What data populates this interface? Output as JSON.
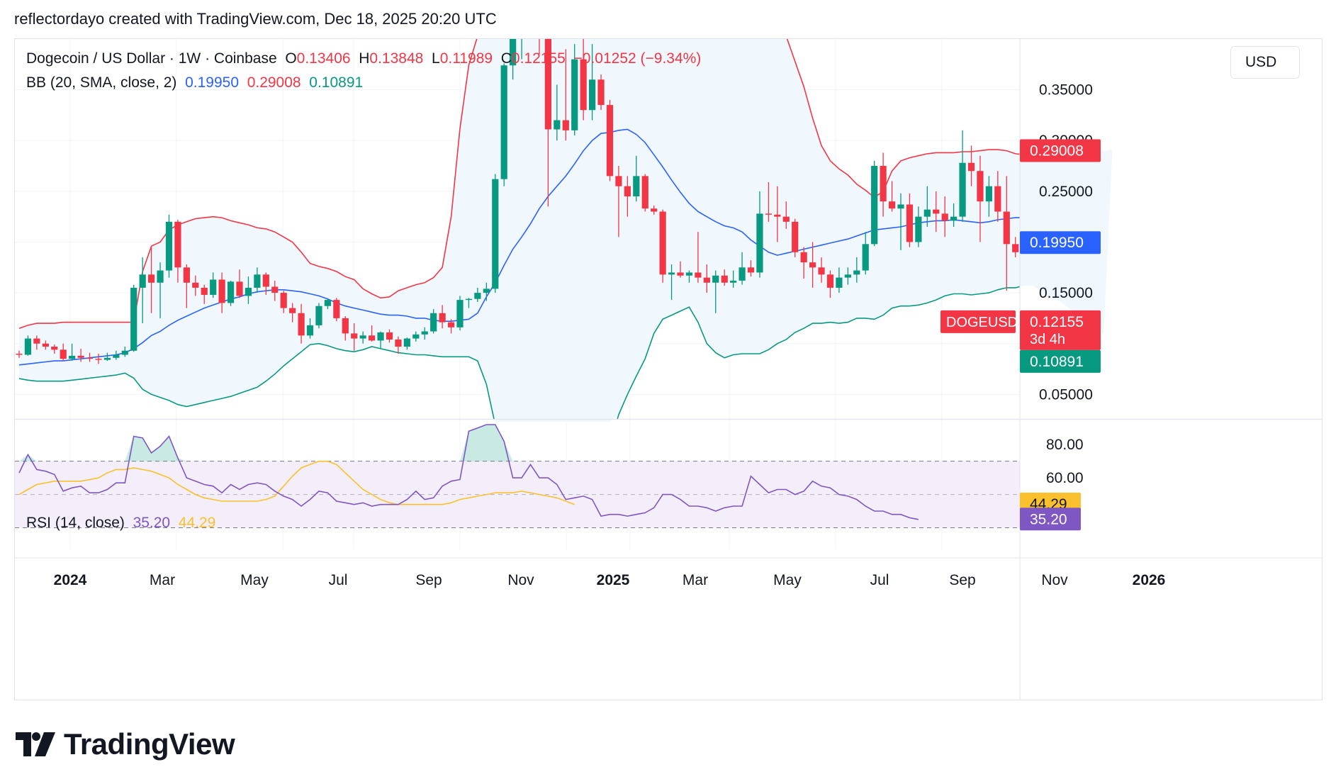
{
  "header": {
    "text": "reflectordayo created with TradingView.com, Dec 18, 2025 20:20 UTC"
  },
  "legend": {
    "symbol": "Dogecoin / US Dollar · 1W · Coinbase",
    "o_label": "O",
    "o_value": "0.13406",
    "h_label": "H",
    "h_value": "0.13848",
    "l_label": "L",
    "l_value": "0.11989",
    "c_label": "C",
    "c_value": "0.12155",
    "change": "−0.01252 (−9.34%)",
    "bb_label": "BB (20, SMA, close, 2)",
    "bb_basis": "0.19950",
    "bb_upper": "0.29008",
    "bb_lower": "0.10891",
    "rsi_label": "RSI (14, close)",
    "rsi_value": "35.20",
    "rsi_ma": "44.29"
  },
  "currency": "USD",
  "price_axis": {
    "ticks": [
      "0.35000",
      "0.30000",
      "0.25000",
      "0.15000",
      "0.05000"
    ],
    "badges": {
      "upper": "0.29008",
      "basis": "0.19950",
      "last_symbol": "DOGEUSD",
      "last_price": "0.12155",
      "countdown": "3d 4h",
      "lower": "0.10891"
    }
  },
  "rsi_axis": {
    "ticks": [
      "80.00",
      "60.00"
    ],
    "badges": {
      "ma": "44.29",
      "rsi": "35.20"
    }
  },
  "time_axis": [
    "2024",
    "Mar",
    "May",
    "Jul",
    "Sep",
    "Nov",
    "2025",
    "Mar",
    "May",
    "Jul",
    "Sep",
    "Nov",
    "2026"
  ],
  "brand": "TradingView",
  "colors": {
    "up": "#089981",
    "down": "#f23645",
    "bb_basis": "#2962ff",
    "bb_upper": "#f23645",
    "bb_lower": "#089981",
    "bb_fill": "#f0f7fd",
    "rsi": "#7e57c2",
    "rsi_ma": "#fbc02d",
    "rsi_band": "#f3eefa"
  },
  "chart_data": {
    "type": "candlestick",
    "symbol": "DOGEUSD",
    "interval": "1W",
    "y_range": [
      0.0258,
      0.4
    ],
    "rsi_range": [
      17,
      95
    ],
    "rsi_levels": [
      70,
      50,
      30
    ],
    "candles": [
      [
        0.09,
        0.093,
        0.086,
        0.089
      ],
      [
        0.089,
        0.108,
        0.088,
        0.105
      ],
      [
        0.105,
        0.108,
        0.094,
        0.1
      ],
      [
        0.1,
        0.103,
        0.094,
        0.097
      ],
      [
        0.097,
        0.099,
        0.09,
        0.094
      ],
      [
        0.094,
        0.1,
        0.083,
        0.085
      ],
      [
        0.085,
        0.1,
        0.083,
        0.088
      ],
      [
        0.088,
        0.095,
        0.082,
        0.086
      ],
      [
        0.086,
        0.091,
        0.082,
        0.085
      ],
      [
        0.085,
        0.09,
        0.08,
        0.084
      ],
      [
        0.084,
        0.091,
        0.083,
        0.086
      ],
      [
        0.086,
        0.093,
        0.084,
        0.089
      ],
      [
        0.089,
        0.097,
        0.087,
        0.093
      ],
      [
        0.093,
        0.158,
        0.092,
        0.155
      ],
      [
        0.155,
        0.185,
        0.12,
        0.168
      ],
      [
        0.168,
        0.195,
        0.13,
        0.16
      ],
      [
        0.16,
        0.18,
        0.125,
        0.172
      ],
      [
        0.172,
        0.227,
        0.165,
        0.22
      ],
      [
        0.22,
        0.222,
        0.16,
        0.175
      ],
      [
        0.175,
        0.178,
        0.135,
        0.16
      ],
      [
        0.16,
        0.167,
        0.147,
        0.155
      ],
      [
        0.155,
        0.158,
        0.139,
        0.148
      ],
      [
        0.148,
        0.17,
        0.145,
        0.163
      ],
      [
        0.163,
        0.17,
        0.13,
        0.14
      ],
      [
        0.14,
        0.162,
        0.137,
        0.161
      ],
      [
        0.161,
        0.173,
        0.145,
        0.147
      ],
      [
        0.147,
        0.166,
        0.139,
        0.155
      ],
      [
        0.155,
        0.175,
        0.15,
        0.168
      ],
      [
        0.168,
        0.17,
        0.148,
        0.156
      ],
      [
        0.156,
        0.162,
        0.142,
        0.15
      ],
      [
        0.15,
        0.152,
        0.13,
        0.135
      ],
      [
        0.135,
        0.14,
        0.121,
        0.13
      ],
      [
        0.13,
        0.139,
        0.1,
        0.108
      ],
      [
        0.108,
        0.125,
        0.105,
        0.118
      ],
      [
        0.118,
        0.14,
        0.115,
        0.137
      ],
      [
        0.137,
        0.144,
        0.134,
        0.143
      ],
      [
        0.143,
        0.145,
        0.122,
        0.125
      ],
      [
        0.125,
        0.127,
        0.103,
        0.11
      ],
      [
        0.11,
        0.12,
        0.093,
        0.105
      ],
      [
        0.105,
        0.112,
        0.1,
        0.108
      ],
      [
        0.108,
        0.118,
        0.102,
        0.103
      ],
      [
        0.103,
        0.112,
        0.095,
        0.111
      ],
      [
        0.111,
        0.114,
        0.101,
        0.104
      ],
      [
        0.104,
        0.107,
        0.09,
        0.097
      ],
      [
        0.097,
        0.106,
        0.094,
        0.105
      ],
      [
        0.105,
        0.112,
        0.102,
        0.109
      ],
      [
        0.109,
        0.116,
        0.104,
        0.112
      ],
      [
        0.112,
        0.134,
        0.11,
        0.13
      ],
      [
        0.13,
        0.138,
        0.115,
        0.121
      ],
      [
        0.121,
        0.124,
        0.11,
        0.116
      ],
      [
        0.116,
        0.147,
        0.113,
        0.143
      ],
      [
        0.143,
        0.145,
        0.135,
        0.144
      ],
      [
        0.144,
        0.155,
        0.141,
        0.15
      ],
      [
        0.15,
        0.16,
        0.142,
        0.154
      ],
      [
        0.154,
        0.267,
        0.15,
        0.262
      ],
      [
        0.262,
        0.376,
        0.255,
        0.374
      ],
      [
        0.374,
        0.45,
        0.36,
        0.42
      ],
      [
        0.42,
        0.47,
        0.38,
        0.44
      ],
      [
        0.44,
        0.47,
        0.415,
        0.43
      ],
      [
        0.43,
        0.44,
        0.385,
        0.4
      ],
      [
        0.4,
        0.42,
        0.235,
        0.311
      ],
      [
        0.311,
        0.355,
        0.3,
        0.32
      ],
      [
        0.32,
        0.39,
        0.3,
        0.31
      ],
      [
        0.31,
        0.395,
        0.305,
        0.38
      ],
      [
        0.38,
        0.41,
        0.32,
        0.33
      ],
      [
        0.33,
        0.395,
        0.32,
        0.36
      ],
      [
        0.36,
        0.365,
        0.33,
        0.335
      ],
      [
        0.335,
        0.34,
        0.26,
        0.265
      ],
      [
        0.265,
        0.275,
        0.205,
        0.255
      ],
      [
        0.255,
        0.265,
        0.225,
        0.245
      ],
      [
        0.245,
        0.285,
        0.24,
        0.265
      ],
      [
        0.265,
        0.267,
        0.23,
        0.233
      ],
      [
        0.233,
        0.236,
        0.227,
        0.23
      ],
      [
        0.23,
        0.232,
        0.16,
        0.168
      ],
      [
        0.168,
        0.178,
        0.143,
        0.17
      ],
      [
        0.17,
        0.181,
        0.165,
        0.167
      ],
      [
        0.167,
        0.172,
        0.16,
        0.17
      ],
      [
        0.17,
        0.21,
        0.16,
        0.165
      ],
      [
        0.165,
        0.178,
        0.15,
        0.16
      ],
      [
        0.16,
        0.172,
        0.13,
        0.167
      ],
      [
        0.167,
        0.173,
        0.157,
        0.16
      ],
      [
        0.16,
        0.172,
        0.155,
        0.162
      ],
      [
        0.162,
        0.19,
        0.158,
        0.175
      ],
      [
        0.175,
        0.182,
        0.166,
        0.17
      ],
      [
        0.17,
        0.25,
        0.165,
        0.228
      ],
      [
        0.228,
        0.259,
        0.22,
        0.227
      ],
      [
        0.227,
        0.255,
        0.2,
        0.225
      ],
      [
        0.225,
        0.24,
        0.213,
        0.22
      ],
      [
        0.22,
        0.223,
        0.185,
        0.19
      ],
      [
        0.19,
        0.195,
        0.164,
        0.18
      ],
      [
        0.18,
        0.2,
        0.155,
        0.175
      ],
      [
        0.175,
        0.185,
        0.16,
        0.168
      ],
      [
        0.168,
        0.172,
        0.145,
        0.155
      ],
      [
        0.155,
        0.175,
        0.15,
        0.165
      ],
      [
        0.165,
        0.175,
        0.158,
        0.168
      ],
      [
        0.168,
        0.185,
        0.16,
        0.172
      ],
      [
        0.172,
        0.21,
        0.168,
        0.198
      ],
      [
        0.198,
        0.28,
        0.196,
        0.275
      ],
      [
        0.275,
        0.288,
        0.225,
        0.24
      ],
      [
        0.24,
        0.26,
        0.23,
        0.233
      ],
      [
        0.233,
        0.248,
        0.192,
        0.237
      ],
      [
        0.237,
        0.248,
        0.195,
        0.2
      ],
      [
        0.2,
        0.235,
        0.195,
        0.225
      ],
      [
        0.225,
        0.255,
        0.215,
        0.232
      ],
      [
        0.232,
        0.25,
        0.21,
        0.228
      ],
      [
        0.228,
        0.245,
        0.205,
        0.221
      ],
      [
        0.221,
        0.238,
        0.215,
        0.225
      ],
      [
        0.225,
        0.31,
        0.22,
        0.278
      ],
      [
        0.278,
        0.295,
        0.255,
        0.27
      ],
      [
        0.27,
        0.285,
        0.2,
        0.24
      ],
      [
        0.24,
        0.265,
        0.225,
        0.255
      ],
      [
        0.255,
        0.27,
        0.22,
        0.23
      ],
      [
        0.23,
        0.265,
        0.152,
        0.198
      ],
      [
        0.198,
        0.205,
        0.185,
        0.19
      ],
      [
        0.19,
        0.203,
        0.185,
        0.201
      ],
      [
        0.201,
        0.205,
        0.165,
        0.18
      ],
      [
        0.18,
        0.183,
        0.155,
        0.176
      ],
      [
        0.176,
        0.19,
        0.16,
        0.167
      ],
      [
        0.167,
        0.17,
        0.146,
        0.158
      ],
      [
        0.158,
        0.165,
        0.13,
        0.148
      ],
      [
        0.148,
        0.16,
        0.135,
        0.147
      ],
      [
        0.147,
        0.152,
        0.14,
        0.145
      ],
      [
        0.145,
        0.155,
        0.132,
        0.134
      ],
      [
        0.134,
        0.138,
        0.13,
        0.134
      ],
      [
        0.134,
        0.138,
        0.12,
        0.122
      ]
    ],
    "bb_upper": [
      0.115,
      0.118,
      0.12,
      0.12,
      0.12,
      0.121,
      0.121,
      0.121,
      0.121,
      0.121,
      0.121,
      0.121,
      0.121,
      0.121,
      0.171,
      0.196,
      0.2,
      0.212,
      0.217,
      0.22,
      0.223,
      0.224,
      0.225,
      0.224,
      0.221,
      0.219,
      0.217,
      0.214,
      0.213,
      0.21,
      0.205,
      0.2,
      0.19,
      0.179,
      0.176,
      0.174,
      0.171,
      0.166,
      0.163,
      0.154,
      0.149,
      0.145,
      0.146,
      0.152,
      0.155,
      0.158,
      0.16,
      0.165,
      0.175,
      0.225,
      0.312,
      0.374,
      0.405,
      0.43,
      0.442,
      0.45,
      0.458,
      0.465,
      0.47,
      0.47,
      0.47,
      0.47,
      0.47,
      0.47,
      0.47,
      0.47,
      0.47,
      0.47,
      0.47,
      0.47,
      0.47,
      0.47,
      0.47,
      0.47,
      0.47,
      0.47,
      0.47,
      0.47,
      0.47,
      0.47,
      0.47,
      0.47,
      0.47,
      0.47,
      0.47,
      0.465,
      0.448,
      0.413,
      0.378,
      0.353,
      0.322,
      0.295,
      0.28,
      0.272,
      0.266,
      0.257,
      0.251,
      0.244,
      0.25,
      0.27,
      0.28,
      0.283,
      0.285,
      0.287,
      0.288,
      0.288,
      0.288,
      0.289,
      0.289,
      0.29,
      0.291,
      0.291,
      0.29,
      0.287,
      0.286,
      0.286,
      0.287,
      0.289,
      0.293,
      0.296,
      0.293,
      0.29,
      0.29,
      0.29,
      0.291
    ],
    "bb_basis": [
      0.079,
      0.08,
      0.081,
      0.082,
      0.083,
      0.083,
      0.084,
      0.085,
      0.086,
      0.087,
      0.088,
      0.089,
      0.091,
      0.095,
      0.101,
      0.108,
      0.112,
      0.118,
      0.123,
      0.127,
      0.131,
      0.135,
      0.138,
      0.141,
      0.144,
      0.146,
      0.149,
      0.151,
      0.152,
      0.153,
      0.153,
      0.152,
      0.151,
      0.149,
      0.147,
      0.144,
      0.14,
      0.137,
      0.135,
      0.133,
      0.131,
      0.129,
      0.128,
      0.128,
      0.127,
      0.125,
      0.125,
      0.123,
      0.122,
      0.122,
      0.123,
      0.124,
      0.13,
      0.146,
      0.16,
      0.177,
      0.193,
      0.205,
      0.218,
      0.233,
      0.245,
      0.255,
      0.265,
      0.277,
      0.29,
      0.3,
      0.307,
      0.308,
      0.31,
      0.311,
      0.306,
      0.298,
      0.286,
      0.274,
      0.261,
      0.249,
      0.238,
      0.23,
      0.225,
      0.22,
      0.216,
      0.214,
      0.21,
      0.202,
      0.196,
      0.19,
      0.187,
      0.189,
      0.191,
      0.193,
      0.195,
      0.197,
      0.199,
      0.201,
      0.203,
      0.206,
      0.209,
      0.212,
      0.213,
      0.214,
      0.215,
      0.217,
      0.219,
      0.22,
      0.221,
      0.221,
      0.222,
      0.221,
      0.22,
      0.219,
      0.22,
      0.222,
      0.223,
      0.224,
      0.224,
      0.222,
      0.219,
      0.217,
      0.213,
      0.208,
      0.205,
      0.203,
      0.201,
      0.2
    ],
    "bb_lower": [
      0.0655,
      0.064,
      0.063,
      0.063,
      0.063,
      0.063,
      0.064,
      0.065,
      0.066,
      0.067,
      0.068,
      0.069,
      0.071,
      0.066,
      0.055,
      0.05,
      0.047,
      0.044,
      0.04,
      0.038,
      0.04,
      0.042,
      0.044,
      0.046,
      0.048,
      0.051,
      0.054,
      0.057,
      0.063,
      0.07,
      0.078,
      0.085,
      0.092,
      0.099,
      0.1,
      0.098,
      0.095,
      0.093,
      0.092,
      0.094,
      0.097,
      0.095,
      0.093,
      0.091,
      0.09,
      0.089,
      0.089,
      0.088,
      0.087,
      0.087,
      0.087,
      0.087,
      0.083,
      0.06,
      0.02,
      -0.01,
      -0.03,
      -0.05,
      -0.06,
      -0.07,
      -0.075,
      -0.08,
      -0.08,
      -0.07,
      -0.055,
      -0.04,
      -0.02,
      0.0,
      0.03,
      0.05,
      0.068,
      0.085,
      0.11,
      0.124,
      0.128,
      0.132,
      0.136,
      0.121,
      0.1,
      0.091,
      0.086,
      0.089,
      0.09,
      0.09,
      0.09,
      0.094,
      0.1,
      0.104,
      0.111,
      0.115,
      0.12,
      0.12,
      0.121,
      0.12,
      0.121,
      0.125,
      0.125,
      0.124,
      0.128,
      0.135,
      0.137,
      0.137,
      0.138,
      0.14,
      0.143,
      0.147,
      0.149,
      0.149,
      0.148,
      0.149,
      0.15,
      0.153,
      0.155,
      0.155,
      0.157,
      0.157,
      0.151,
      0.145,
      0.142,
      0.135,
      0.13,
      0.125,
      0.118,
      0.109
    ],
    "rsi": [
      63,
      74,
      65,
      64,
      62,
      52,
      54,
      55,
      51,
      51,
      53,
      57,
      57,
      85,
      84,
      75,
      79,
      85,
      72,
      60,
      58,
      56,
      55,
      51,
      56,
      53,
      56,
      57,
      56,
      52,
      49,
      47,
      43,
      47,
      52,
      51,
      46,
      45,
      44,
      45,
      43,
      44,
      44,
      44,
      47,
      52,
      47,
      48,
      55,
      58,
      59,
      88,
      90,
      92,
      92,
      82,
      60,
      60,
      68,
      60,
      60,
      56,
      47,
      48,
      49,
      47,
      37,
      38,
      38,
      37,
      38,
      39,
      42,
      50,
      50,
      47,
      43,
      43,
      42,
      40,
      42,
      43,
      43,
      61,
      56,
      51,
      53,
      53,
      50,
      52,
      58,
      55,
      54,
      50,
      49,
      47,
      43,
      40,
      40,
      38,
      38,
      36,
      35
    ],
    "rsi_ma": [
      50,
      53,
      56,
      57,
      58,
      58,
      58,
      58,
      59,
      60,
      63,
      65,
      65,
      66,
      65,
      64,
      62,
      60,
      56,
      53,
      50,
      48,
      47,
      46,
      46,
      46,
      46,
      46,
      47,
      49,
      55,
      61,
      66,
      68,
      70,
      70,
      68,
      63,
      58,
      53,
      50,
      47,
      45,
      44,
      44,
      44,
      44,
      44,
      44,
      45,
      47,
      48,
      49,
      50,
      51,
      51,
      51,
      52,
      51,
      50,
      49,
      48,
      46,
      44
    ]
  }
}
